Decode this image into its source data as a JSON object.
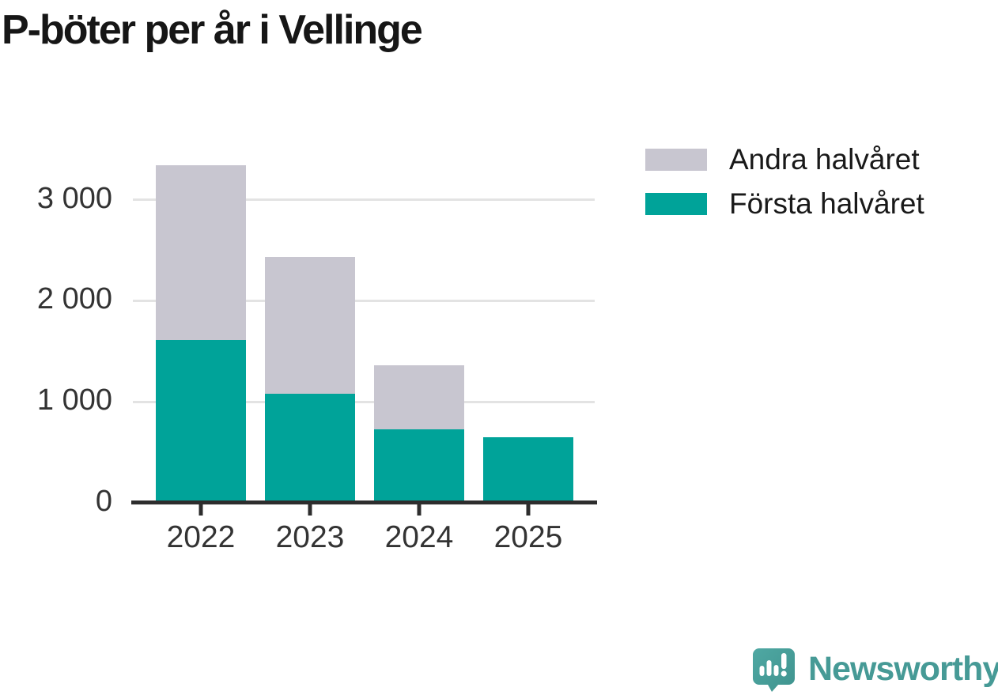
{
  "title": "P-böter per år i Vellinge",
  "legend": {
    "items": [
      {
        "label": "Andra halvåret",
        "color": "#c8c6d0"
      },
      {
        "label": "Första halvåret",
        "color": "#00a399"
      }
    ]
  },
  "chart_data": {
    "type": "bar",
    "stacked": true,
    "title": "P-böter per år i Vellinge",
    "categories": [
      "2022",
      "2023",
      "2024",
      "2025"
    ],
    "series": [
      {
        "name": "Första halvåret",
        "color": "#00a399",
        "values": [
          1610,
          1080,
          730,
          650
        ]
      },
      {
        "name": "Andra halvåret",
        "color": "#c8c6d0",
        "values": [
          1730,
          1350,
          630,
          0
        ]
      }
    ],
    "totals": [
      3340,
      2430,
      1360,
      650
    ],
    "xlabel": "",
    "ylabel": "",
    "ylim": [
      0,
      3500
    ],
    "yticks": [
      {
        "value": 0,
        "label": "0"
      },
      {
        "value": 1000,
        "label": "1 000"
      },
      {
        "value": 2000,
        "label": "2 000"
      },
      {
        "value": 3000,
        "label": "3 000"
      }
    ],
    "grid": true,
    "legend_position": "top-right"
  },
  "branding": {
    "wordmark": "Newsworthy",
    "icon": "newsworthy-speech-bubble-barchart-icon",
    "color": "#469a96"
  },
  "colors": {
    "first_half": "#00a399",
    "second_half": "#c8c6d0",
    "axis": "#2d2d2d",
    "gridline": "#e3e3e3",
    "tick_text": "#333333",
    "title_text": "#161616",
    "background": "#ffffff"
  }
}
